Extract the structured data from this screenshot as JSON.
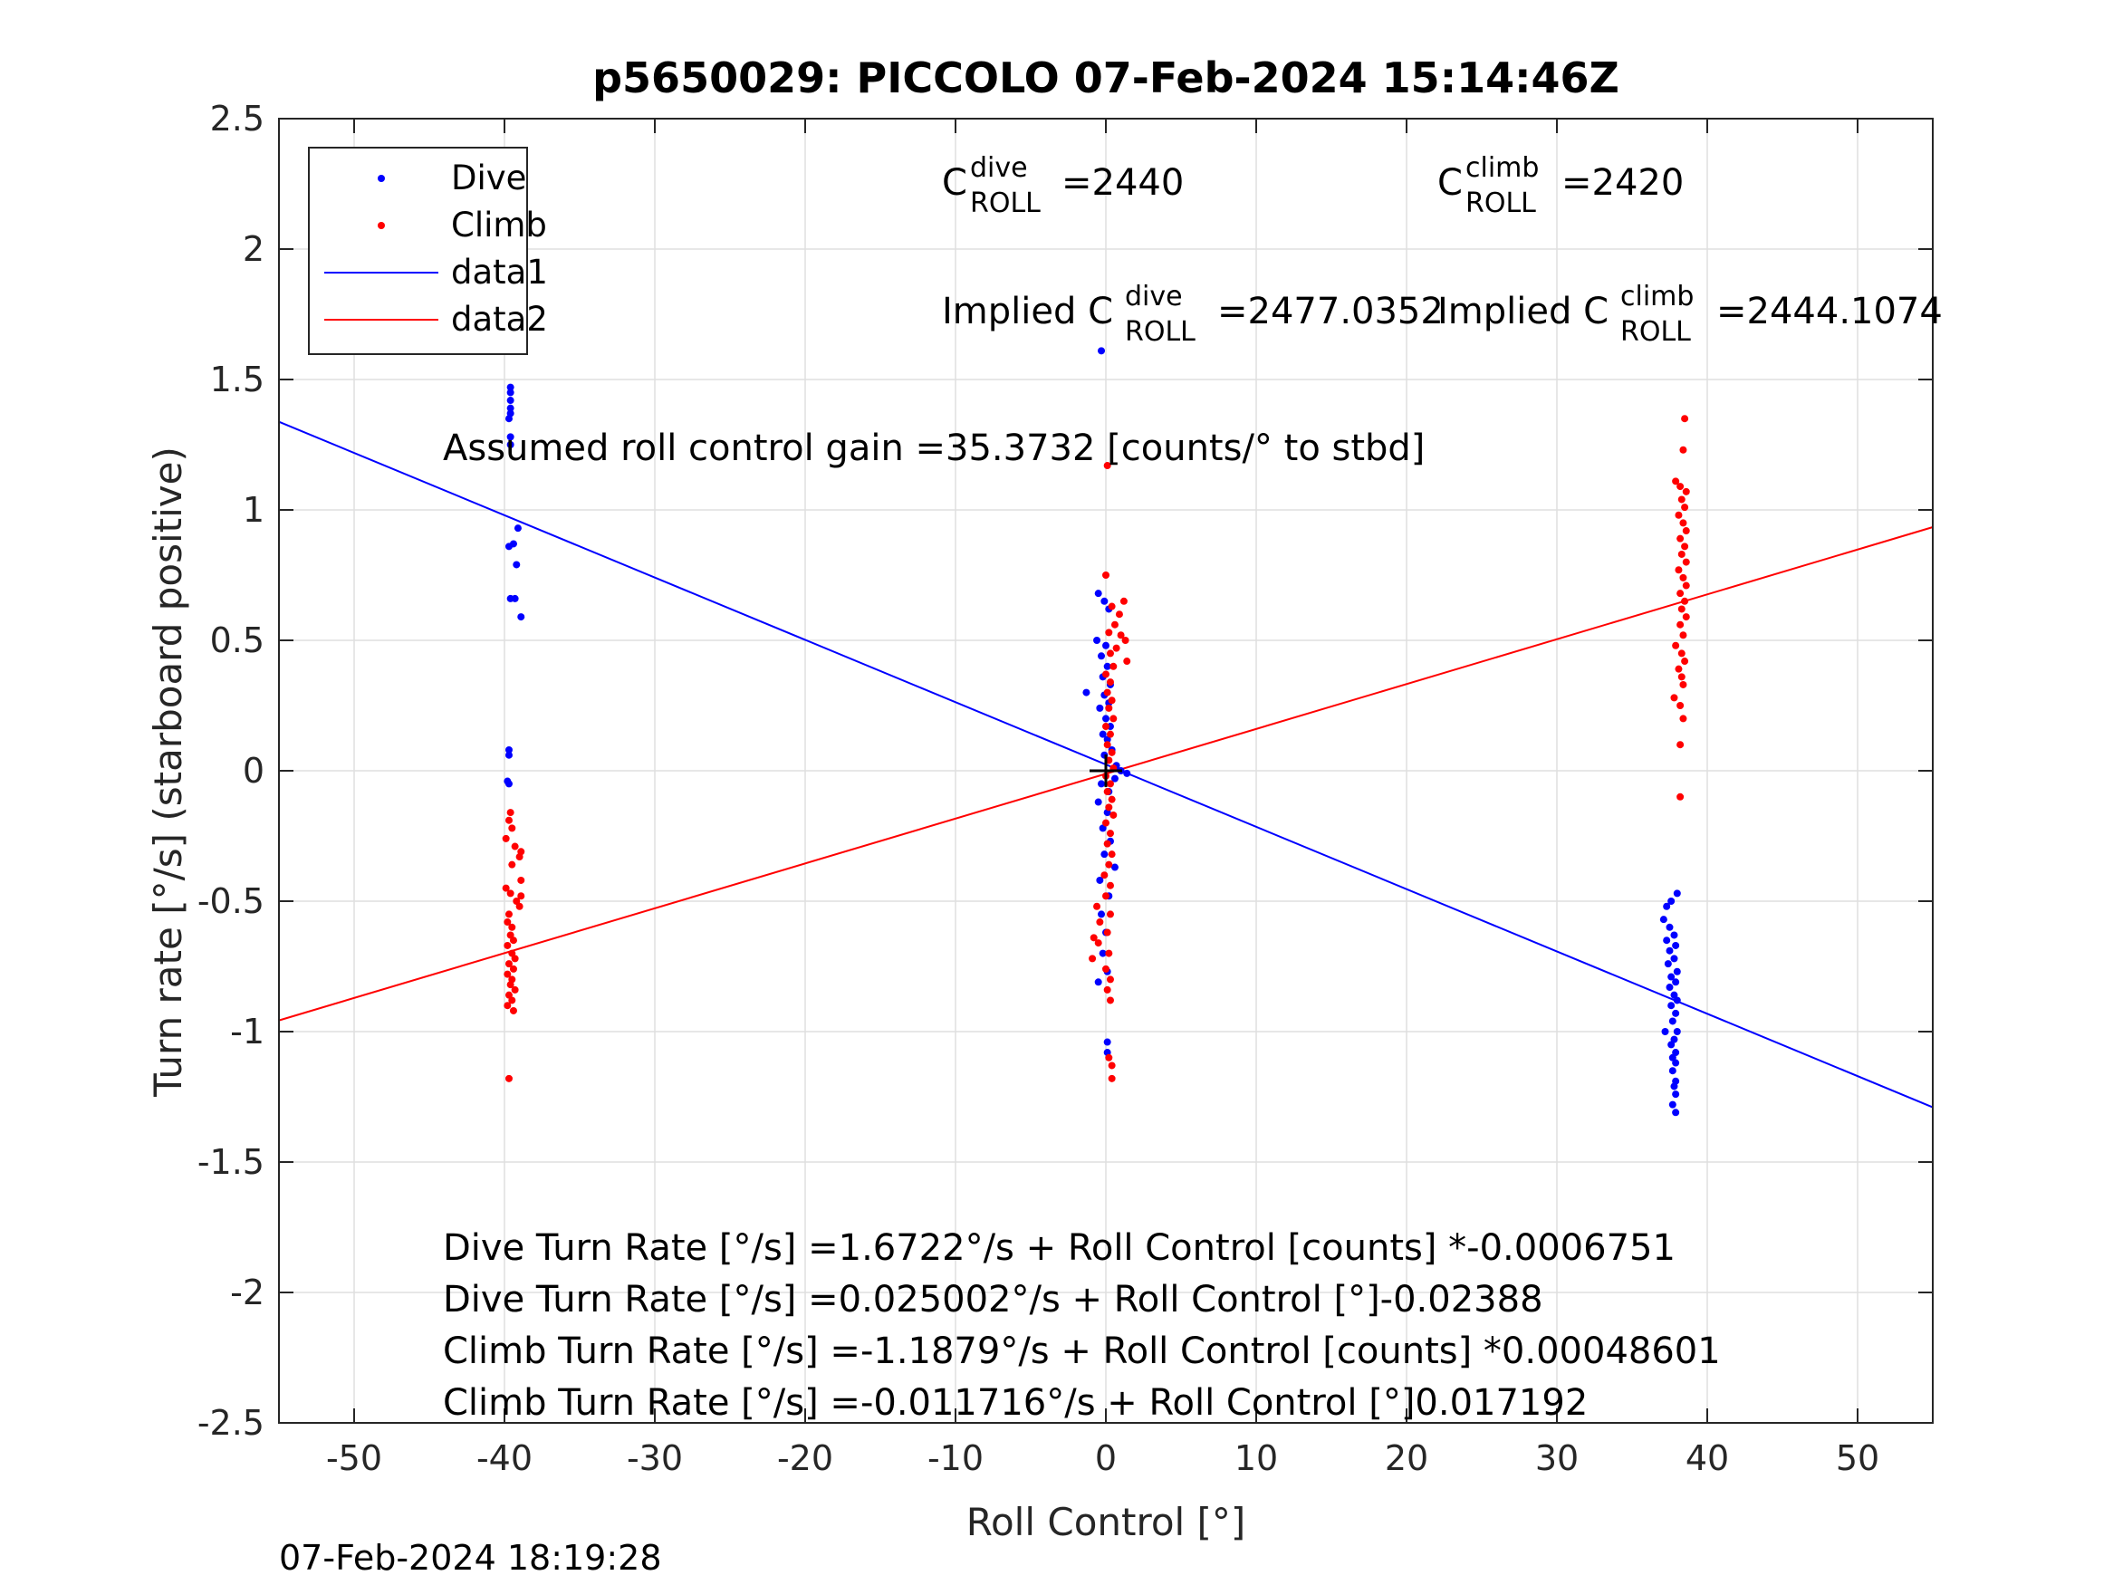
{
  "chart_data": {
    "type": "scatter",
    "title": "p5650029: PICCOLO 07-Feb-2024 15:14:46Z",
    "xlabel": "Roll Control [°]",
    "ylabel": "Turn rate [°/s] (starboard positive)",
    "xlim": [
      -55,
      55
    ],
    "ylim": [
      -2.5,
      2.5
    ],
    "xticks": [
      -50,
      -40,
      -30,
      -20,
      -10,
      0,
      10,
      20,
      30,
      40,
      50
    ],
    "xtick_labels": [
      "-50",
      "-40",
      "-30",
      "-20",
      "-10",
      "0",
      "10",
      "20",
      "30",
      "40",
      "50"
    ],
    "yticks": [
      -2.5,
      -2,
      -1.5,
      -1,
      -0.5,
      0,
      0.5,
      1,
      1.5,
      2,
      2.5
    ],
    "ytick_labels": [
      "-2.5",
      "-2",
      "-1.5",
      "-1",
      "-0.5",
      "0",
      "0.5",
      "1",
      "1.5",
      "2",
      "2.5"
    ],
    "grid": true,
    "legend_position": "top-left",
    "legend": [
      {
        "name": "Dive",
        "marker": "dot",
        "color": "#0000ff"
      },
      {
        "name": "Climb",
        "marker": "dot",
        "color": "#ff0000"
      },
      {
        "name": "data1",
        "marker": "line",
        "color": "#0000ff"
      },
      {
        "name": "data2",
        "marker": "line",
        "color": "#ff0000"
      }
    ],
    "series": [
      {
        "name": "Dive",
        "kind": "scatter",
        "color": "#0000ff",
        "points": [
          [
            -39.6,
            1.47
          ],
          [
            -39.6,
            1.45
          ],
          [
            -39.6,
            1.42
          ],
          [
            -39.6,
            1.39
          ],
          [
            -39.6,
            1.37
          ],
          [
            -39.7,
            1.35
          ],
          [
            -39.6,
            1.28
          ],
          [
            -39.6,
            1.25
          ],
          [
            -39.1,
            0.93
          ],
          [
            -39.7,
            0.86
          ],
          [
            -39.4,
            0.87
          ],
          [
            -39.2,
            0.79
          ],
          [
            -39.6,
            0.66
          ],
          [
            -39.3,
            0.66
          ],
          [
            -38.9,
            0.59
          ],
          [
            -39.7,
            0.08
          ],
          [
            -39.7,
            0.06
          ],
          [
            -39.8,
            -0.04
          ],
          [
            -39.7,
            -0.05
          ],
          [
            -0.3,
            1.61
          ],
          [
            -0.5,
            0.68
          ],
          [
            -0.1,
            0.65
          ],
          [
            0.2,
            0.62
          ],
          [
            -0.6,
            0.5
          ],
          [
            0.0,
            0.48
          ],
          [
            -0.3,
            0.44
          ],
          [
            0.1,
            0.4
          ],
          [
            -0.2,
            0.36
          ],
          [
            0.3,
            0.33
          ],
          [
            -1.3,
            0.3
          ],
          [
            -0.1,
            0.29
          ],
          [
            0.2,
            0.26
          ],
          [
            -0.4,
            0.24
          ],
          [
            0.0,
            0.2
          ],
          [
            0.3,
            0.17
          ],
          [
            -0.2,
            0.14
          ],
          [
            0.1,
            0.12
          ],
          [
            0.4,
            0.08
          ],
          [
            -0.1,
            0.06
          ],
          [
            0.7,
            0.02
          ],
          [
            1.0,
            0.0
          ],
          [
            1.4,
            -0.01
          ],
          [
            0.6,
            -0.03
          ],
          [
            -0.3,
            -0.05
          ],
          [
            0.2,
            -0.08
          ],
          [
            -0.5,
            -0.12
          ],
          [
            0.1,
            -0.16
          ],
          [
            -0.2,
            -0.22
          ],
          [
            0.3,
            -0.27
          ],
          [
            -0.1,
            -0.32
          ],
          [
            0.6,
            -0.37
          ],
          [
            -0.4,
            -0.42
          ],
          [
            0.2,
            -0.48
          ],
          [
            -0.3,
            -0.55
          ],
          [
            0.0,
            -0.62
          ],
          [
            -0.2,
            -0.7
          ],
          [
            0.1,
            -0.77
          ],
          [
            -0.5,
            -0.81
          ],
          [
            0.1,
            -1.04
          ],
          [
            0.1,
            -1.08
          ],
          [
            38.0,
            -0.47
          ],
          [
            37.6,
            -0.5
          ],
          [
            37.3,
            -0.52
          ],
          [
            37.1,
            -0.57
          ],
          [
            37.5,
            -0.6
          ],
          [
            37.8,
            -0.63
          ],
          [
            37.3,
            -0.65
          ],
          [
            37.9,
            -0.67
          ],
          [
            37.5,
            -0.69
          ],
          [
            37.8,
            -0.72
          ],
          [
            37.4,
            -0.74
          ],
          [
            38.0,
            -0.77
          ],
          [
            37.6,
            -0.79
          ],
          [
            37.9,
            -0.81
          ],
          [
            37.5,
            -0.83
          ],
          [
            37.8,
            -0.86
          ],
          [
            38.0,
            -0.88
          ],
          [
            37.6,
            -0.9
          ],
          [
            37.9,
            -0.93
          ],
          [
            37.7,
            -0.96
          ],
          [
            37.2,
            -1.0
          ],
          [
            38.0,
            -1.0
          ],
          [
            37.8,
            -1.03
          ],
          [
            37.6,
            -1.05
          ],
          [
            37.9,
            -1.08
          ],
          [
            37.7,
            -1.1
          ],
          [
            37.9,
            -1.12
          ],
          [
            37.7,
            -1.15
          ],
          [
            37.9,
            -1.19
          ],
          [
            37.8,
            -1.21
          ],
          [
            37.9,
            -1.24
          ],
          [
            37.7,
            -1.28
          ],
          [
            37.9,
            -1.31
          ]
        ]
      },
      {
        "name": "Climb",
        "kind": "scatter",
        "color": "#ff0000",
        "points": [
          [
            -39.6,
            -0.16
          ],
          [
            -39.7,
            -0.19
          ],
          [
            -39.5,
            -0.22
          ],
          [
            -39.9,
            -0.26
          ],
          [
            -39.3,
            -0.29
          ],
          [
            -38.9,
            -0.31
          ],
          [
            -39.0,
            -0.33
          ],
          [
            -39.5,
            -0.36
          ],
          [
            -38.9,
            -0.42
          ],
          [
            -39.9,
            -0.45
          ],
          [
            -39.6,
            -0.47
          ],
          [
            -38.9,
            -0.48
          ],
          [
            -39.2,
            -0.5
          ],
          [
            -39.0,
            -0.52
          ],
          [
            -39.7,
            -0.55
          ],
          [
            -39.8,
            -0.58
          ],
          [
            -39.5,
            -0.6
          ],
          [
            -39.6,
            -0.63
          ],
          [
            -39.4,
            -0.65
          ],
          [
            -39.8,
            -0.67
          ],
          [
            -39.5,
            -0.7
          ],
          [
            -39.3,
            -0.72
          ],
          [
            -39.7,
            -0.74
          ],
          [
            -39.4,
            -0.76
          ],
          [
            -39.8,
            -0.78
          ],
          [
            -39.5,
            -0.8
          ],
          [
            -39.6,
            -0.82
          ],
          [
            -39.3,
            -0.84
          ],
          [
            -39.7,
            -0.86
          ],
          [
            -39.5,
            -0.88
          ],
          [
            -39.8,
            -0.9
          ],
          [
            -39.4,
            -0.92
          ],
          [
            -39.7,
            -1.18
          ],
          [
            0.1,
            1.17
          ],
          [
            0.0,
            0.75
          ],
          [
            1.2,
            0.65
          ],
          [
            0.4,
            0.63
          ],
          [
            0.9,
            0.6
          ],
          [
            0.6,
            0.56
          ],
          [
            0.2,
            0.53
          ],
          [
            1.0,
            0.52
          ],
          [
            1.3,
            0.5
          ],
          [
            0.7,
            0.47
          ],
          [
            0.3,
            0.45
          ],
          [
            1.4,
            0.42
          ],
          [
            0.5,
            0.4
          ],
          [
            0.0,
            0.37
          ],
          [
            0.3,
            0.34
          ],
          [
            0.1,
            0.3
          ],
          [
            0.4,
            0.27
          ],
          [
            0.2,
            0.24
          ],
          [
            0.5,
            0.2
          ],
          [
            0.0,
            0.17
          ],
          [
            0.3,
            0.14
          ],
          [
            0.1,
            0.1
          ],
          [
            0.4,
            0.07
          ],
          [
            0.2,
            0.04
          ],
          [
            0.5,
            0.01
          ],
          [
            0.0,
            -0.02
          ],
          [
            0.3,
            -0.05
          ],
          [
            0.1,
            -0.08
          ],
          [
            0.4,
            -0.11
          ],
          [
            0.2,
            -0.14
          ],
          [
            0.5,
            -0.17
          ],
          [
            0.0,
            -0.2
          ],
          [
            0.3,
            -0.24
          ],
          [
            0.1,
            -0.28
          ],
          [
            0.4,
            -0.32
          ],
          [
            0.2,
            -0.36
          ],
          [
            -0.1,
            -0.4
          ],
          [
            0.3,
            -0.44
          ],
          [
            0.0,
            -0.48
          ],
          [
            -0.6,
            -0.52
          ],
          [
            0.3,
            -0.55
          ],
          [
            -0.4,
            -0.58
          ],
          [
            0.1,
            -0.62
          ],
          [
            -0.8,
            -0.64
          ],
          [
            -0.5,
            -0.66
          ],
          [
            0.2,
            -0.7
          ],
          [
            -0.9,
            -0.72
          ],
          [
            0.0,
            -0.76
          ],
          [
            0.3,
            -0.8
          ],
          [
            0.1,
            -0.84
          ],
          [
            0.3,
            -0.88
          ],
          [
            0.2,
            -1.1
          ],
          [
            0.4,
            -1.13
          ],
          [
            0.4,
            -1.18
          ],
          [
            38.5,
            1.35
          ],
          [
            38.4,
            1.23
          ],
          [
            37.9,
            1.11
          ],
          [
            38.2,
            1.09
          ],
          [
            38.6,
            1.07
          ],
          [
            38.3,
            1.04
          ],
          [
            38.5,
            1.01
          ],
          [
            38.1,
            0.98
          ],
          [
            38.4,
            0.95
          ],
          [
            38.6,
            0.92
          ],
          [
            38.2,
            0.89
          ],
          [
            38.5,
            0.86
          ],
          [
            38.3,
            0.83
          ],
          [
            38.6,
            0.8
          ],
          [
            38.1,
            0.77
          ],
          [
            38.4,
            0.74
          ],
          [
            38.6,
            0.71
          ],
          [
            38.2,
            0.68
          ],
          [
            38.5,
            0.65
          ],
          [
            38.3,
            0.62
          ],
          [
            38.6,
            0.59
          ],
          [
            38.2,
            0.56
          ],
          [
            38.4,
            0.52
          ],
          [
            37.9,
            0.48
          ],
          [
            38.3,
            0.45
          ],
          [
            38.5,
            0.42
          ],
          [
            38.1,
            0.39
          ],
          [
            38.3,
            0.36
          ],
          [
            38.4,
            0.33
          ],
          [
            37.8,
            0.28
          ],
          [
            38.2,
            0.25
          ],
          [
            38.4,
            0.2
          ],
          [
            38.2,
            0.1
          ],
          [
            38.2,
            -0.1
          ]
        ]
      },
      {
        "name": "data1",
        "kind": "line",
        "color": "#0000ff",
        "x": [
          -55,
          55
        ],
        "y": [
          1.338,
          -1.29
        ]
      },
      {
        "name": "data2",
        "kind": "line",
        "color": "#ff0000",
        "x": [
          -55,
          55
        ],
        "y": [
          -0.957,
          0.934
        ]
      }
    ],
    "center_marker": {
      "x": 0,
      "y": 0,
      "color": "#000000",
      "symbol": "+"
    },
    "annotations": {
      "c_dive_base": "C",
      "c_dive_sup": "dive",
      "c_dive_sub": "ROLL",
      "c_dive_value": "=2440",
      "c_climb_base": "C",
      "c_climb_sup": "climb",
      "c_climb_sub": "ROLL",
      "c_climb_value": "=2420",
      "implied_dive_base": "Implied C",
      "implied_dive_sup": "dive",
      "implied_dive_sub": "ROLL",
      "implied_dive_value": "=2477.0352",
      "implied_climb_base": "Implied C",
      "implied_climb_sup": "climb",
      "implied_climb_sub": "ROLL",
      "implied_climb_value": "=2444.1074",
      "gain": "Assumed roll control gain =35.3732 [counts/° to stbd]",
      "eq1": "Dive Turn Rate [°/s] =1.6722°/s + Roll Control [counts] *-0.0006751",
      "eq2": "Dive Turn Rate [°/s] =0.025002°/s + Roll Control [°]-0.02388",
      "eq3": "Climb Turn Rate [°/s] =-1.1879°/s + Roll Control [counts] *0.00048601",
      "eq4": "Climb Turn Rate [°/s] =-0.011716°/s + Roll Control [°]0.017192"
    },
    "timestamp": "07-Feb-2024 18:19:28"
  }
}
